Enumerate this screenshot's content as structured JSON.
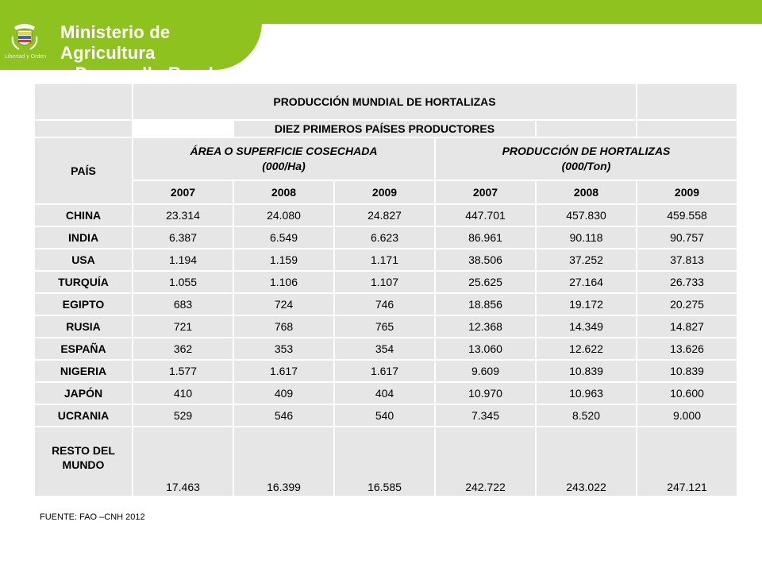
{
  "header": {
    "ministry_line1": "Ministerio de Agricultura",
    "ministry_line2": "y Desarrollo Rural",
    "crest_caption": "Libertad y Orden",
    "crest_icon": "colombia-coat-of-arms-icon",
    "brand_color": "#8dc21f"
  },
  "table": {
    "title": "PRODUCCIÓN MUNDIAL DE HORTALIZAS",
    "subtitle": "DIEZ PRIMEROS PAÍSES PRODUCTORES",
    "country_header": "PAÍS",
    "group_area_line1": "ÁREA O SUPERFICIE COSECHADA",
    "group_area_line2": "(000/Ha)",
    "group_prod_line1": "PRODUCCIÓN DE HORTALIZAS",
    "group_prod_line2": "(000/Ton)",
    "years": [
      "2007",
      "2008",
      "2009",
      "2007",
      "2008",
      "2009"
    ],
    "rows": [
      {
        "country": "CHINA",
        "values": [
          "23.314",
          "24.080",
          "24.827",
          "447.701",
          "457.830",
          "459.558"
        ]
      },
      {
        "country": "INDIA",
        "values": [
          "6.387",
          "6.549",
          "6.623",
          "86.961",
          "90.118",
          "90.757"
        ]
      },
      {
        "country": "USA",
        "values": [
          "1.194",
          "1.159",
          "1.171",
          "38.506",
          "37.252",
          "37.813"
        ]
      },
      {
        "country": "TURQUÍA",
        "values": [
          "1.055",
          "1.106",
          "1.107",
          "25.625",
          "27.164",
          "26.733"
        ]
      },
      {
        "country": "EGIPTO",
        "values": [
          "683",
          "724",
          "746",
          "18.856",
          "19.172",
          "20.275"
        ]
      },
      {
        "country": "RUSIA",
        "values": [
          "721",
          "768",
          "765",
          "12.368",
          "14.349",
          "14.827"
        ]
      },
      {
        "country": "ESPAÑA",
        "values": [
          "362",
          "353",
          "354",
          "13.060",
          "12.622",
          "13.626"
        ]
      },
      {
        "country": "NIGERIA",
        "values": [
          "1.577",
          "1.617",
          "1.617",
          "9.609",
          "10.839",
          "10.839"
        ]
      },
      {
        "country": "JAPÓN",
        "values": [
          "410",
          "409",
          "404",
          "10.970",
          "10.963",
          "10.600"
        ]
      },
      {
        "country": "UCRANIA",
        "values": [
          "529",
          "546",
          "540",
          "7.345",
          "8.520",
          "9.000"
        ]
      },
      {
        "country": "RESTO DEL MUNDO",
        "values": [
          "17.463",
          "16.399",
          "16.585",
          "242.722",
          "243.022",
          "247.121"
        ]
      }
    ]
  },
  "source": "FUENTE: FAO –CNH 2012"
}
